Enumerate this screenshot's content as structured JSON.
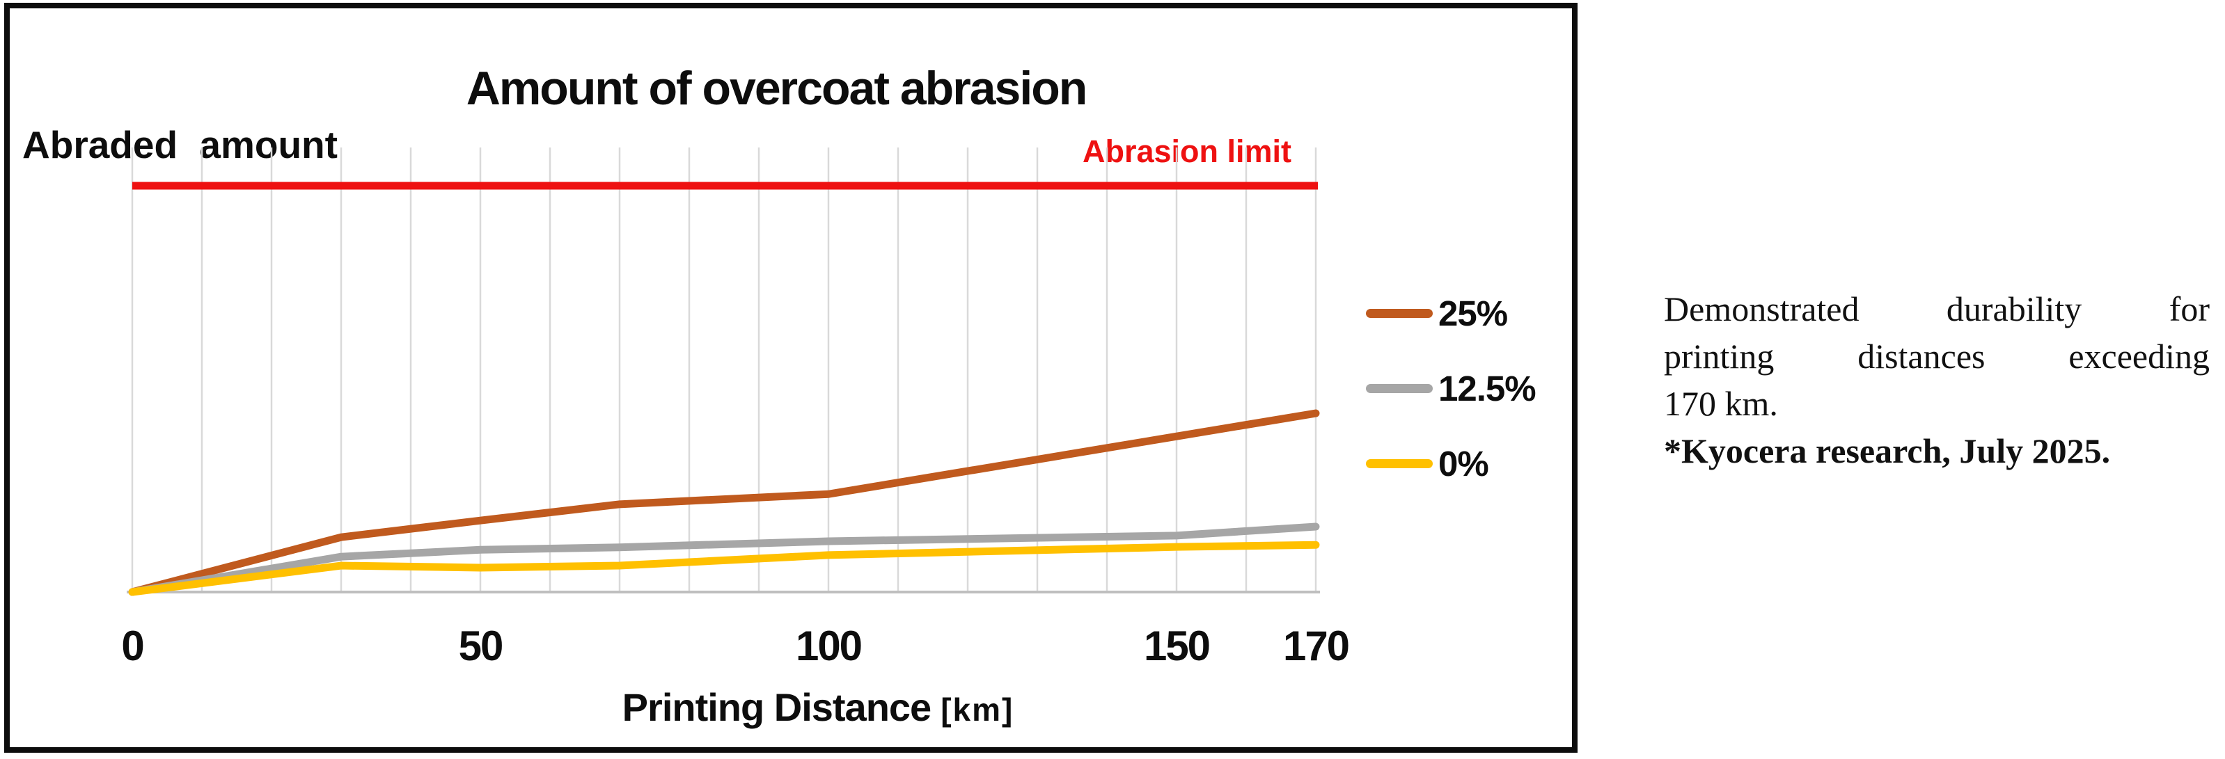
{
  "chart_data": {
    "type": "line",
    "title": "Amount of overcoat abrasion",
    "ylabel": "Abraded amount",
    "xlabel": "Printing Distance",
    "xlabel_unit": "[km]",
    "x_ticks": [
      0,
      50,
      100,
      150,
      170
    ],
    "x_range_km": [
      0,
      170
    ],
    "grid_interval_km": 10,
    "grid_on": true,
    "y_axis_note": "no numeric y ticks; series values expressed as fraction of the abrasion limit (limit = 1.0)",
    "ylim": [
      0,
      1.09
    ],
    "legend_position": "right",
    "limit_line": {
      "label": "Abrasion limit",
      "value": 1.0,
      "color": "#ee1111"
    },
    "series": [
      {
        "name": "25%",
        "color": "#c05a1e",
        "x": [
          0,
          30,
          50,
          70,
          100,
          170
        ],
        "y": [
          0,
          0.135,
          0.176,
          0.216,
          0.241,
          0.44
        ]
      },
      {
        "name": "12.5%",
        "color": "#a6a6a6",
        "x": [
          0,
          30,
          50,
          70,
          100,
          150,
          170
        ],
        "y": [
          0,
          0.087,
          0.104,
          0.11,
          0.125,
          0.139,
          0.161
        ]
      },
      {
        "name": "0%",
        "color": "#ffc000",
        "x": [
          0,
          30,
          50,
          70,
          100,
          150,
          170
        ],
        "y": [
          0,
          0.065,
          0.06,
          0.065,
          0.091,
          0.111,
          0.116
        ]
      }
    ],
    "grid_color": "#d9d9d9",
    "axis_line_color": "#bfbfbf"
  },
  "right_note": {
    "lines": [
      "Demonstrated durability for",
      "printing distances exceeding",
      "170 km."
    ],
    "credit": "*Kyocera research, July 2025."
  }
}
